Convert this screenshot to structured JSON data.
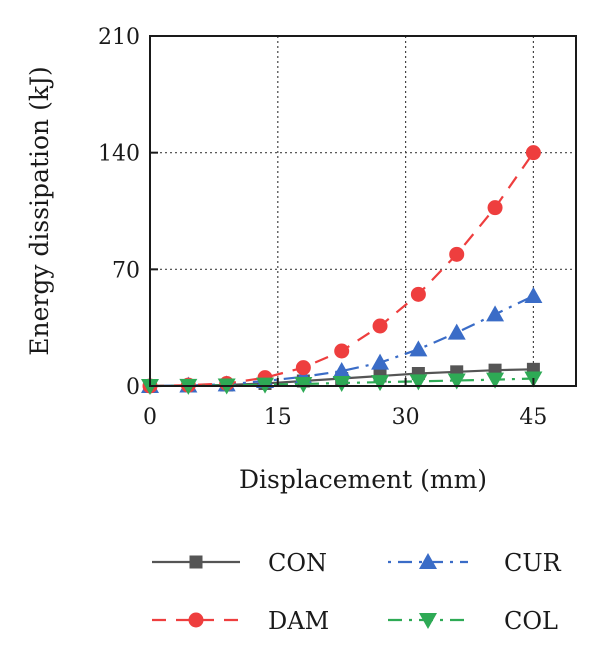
{
  "chart_data": {
    "type": "line",
    "xlabel": "Displacement (mm)",
    "ylabel": "Energy dissipation (kJ)",
    "xlim": [
      0,
      50
    ],
    "ylim": [
      0,
      210
    ],
    "xticks": [
      0,
      15,
      30,
      45
    ],
    "yticks": [
      0,
      70,
      140,
      210
    ],
    "grid": "dotted",
    "legend_position": "bottom",
    "x": [
      0,
      4.5,
      9,
      13.5,
      18,
      22.5,
      27,
      31.5,
      36,
      40.5,
      45
    ],
    "series": [
      {
        "name": "CON",
        "color": "#555555",
        "marker": "square",
        "dash": "solid",
        "values": [
          0,
          0.2,
          0.6,
          1.5,
          3,
          4.5,
          6,
          7.5,
          8.5,
          9.5,
          10
        ]
      },
      {
        "name": "CUR",
        "color": "#3a6cc7",
        "marker": "triangle-up",
        "dash": "dot-dash",
        "values": [
          0,
          0.3,
          1,
          3,
          5.5,
          9,
          14,
          22,
          32,
          43,
          54
        ]
      },
      {
        "name": "DAM",
        "color": "#ee3e3e",
        "marker": "circle",
        "dash": "dashed",
        "values": [
          0,
          0.5,
          1.5,
          5,
          11,
          21,
          36,
          55,
          79,
          107,
          140
        ]
      },
      {
        "name": "COL",
        "color": "#2eaa55",
        "marker": "triangle-down",
        "dash": "dash-dot",
        "values": [
          0,
          0.1,
          0.3,
          0.8,
          1.2,
          1.8,
          2.3,
          2.8,
          3.3,
          3.8,
          4.5
        ]
      }
    ]
  }
}
